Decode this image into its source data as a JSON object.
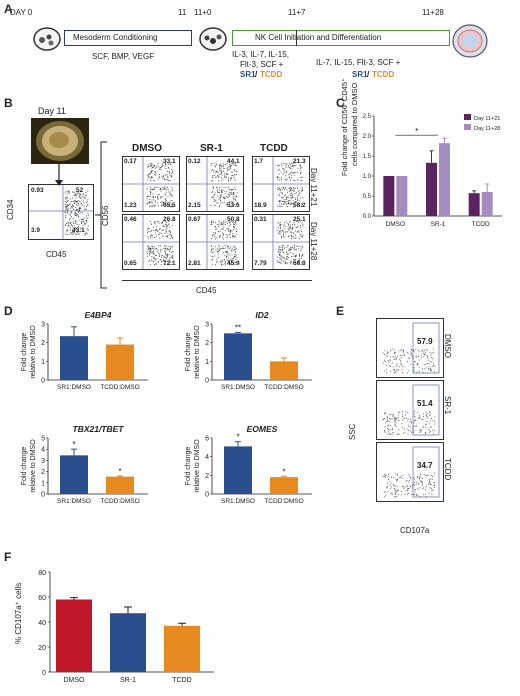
{
  "panelA": {
    "label": "A",
    "timeline": [
      "DAY 0",
      "11",
      "11+0",
      "11+7",
      "11+28"
    ],
    "box1": "Mesoderm Conditioning",
    "box2": "NK Cell Initiation and Differentiation",
    "cond1": "SCF, BMP, VEGF",
    "cond2a": "IL-3, IL-7, IL-15,",
    "cond2b": "Flt-3, SCF +",
    "cond3": "IL-7, IL-15, Flt-3, SCF +",
    "sr1": "SR1",
    "slash": "/",
    "tcdd": "TCDD"
  },
  "panelB": {
    "label": "B",
    "day": "Day 11",
    "cd34": "CD34",
    "cd45": "CD45",
    "cd56": "CD56",
    "cd45b": "CD45",
    "left_q": [
      "0.93",
      "52",
      "3.9",
      "43.1"
    ],
    "cols": [
      "DMSO",
      "SR-1",
      "TCDD"
    ],
    "rows": [
      "Day 11+21",
      "Day 11+28"
    ],
    "q21": [
      [
        "0.17",
        "33.1",
        "1.23",
        "65.5"
      ],
      [
        "0.12",
        "44.1",
        "2.15",
        "53.6"
      ],
      [
        "1.7",
        "21.3",
        "18.9",
        "58.2"
      ]
    ],
    "q28": [
      [
        "0.46",
        "26.8",
        "0.65",
        "72.1"
      ],
      [
        "0.67",
        "50.8",
        "2.81",
        "45.9"
      ],
      [
        "0.31",
        "25.1",
        "7.79",
        "66.8"
      ]
    ],
    "tick_e": "10",
    "tick_sup": [
      "5",
      "4",
      "3",
      "2",
      "1",
      "0"
    ]
  },
  "panelC": {
    "label": "C",
    "ylabel1": "Fold change of CD56⁺CD45⁺",
    "ylabel2": "cells compared to DMSO",
    "legend": [
      "Day 11+21",
      "Day 11+28"
    ],
    "sig": "*",
    "chart_data": {
      "type": "bar",
      "categories": [
        "DMSO",
        "SR-1",
        "TCDD"
      ],
      "series": [
        {
          "name": "Day 11+21",
          "values": [
            1.0,
            1.33,
            0.57
          ],
          "err": [
            0,
            0.3,
            0.06
          ],
          "color": "#5b2461"
        },
        {
          "name": "Day 11+28",
          "values": [
            1.0,
            1.82,
            0.6
          ],
          "err": [
            0,
            0.12,
            0.2
          ],
          "color": "#a58cc0"
        }
      ],
      "ylim": [
        0,
        2.5
      ],
      "yticks": [
        "0.0",
        "0.5",
        "1.0",
        "1.5",
        "2.0",
        "2.5"
      ]
    }
  },
  "panelD": {
    "label": "D",
    "ylab1": "Fold change",
    "ylab2": "relative to DMSO",
    "cats": [
      "SR1:DMSO",
      "TCDD:DMSO"
    ],
    "charts": [
      {
        "title": "E4BP4",
        "values": [
          2.35,
          1.9
        ],
        "err": [
          0.5,
          0.35
        ],
        "ymax": 3,
        "yticks": [
          "0",
          "1",
          "2",
          "3"
        ],
        "sig": [
          "",
          ""
        ]
      },
      {
        "title": "ID2",
        "values": [
          2.5,
          1.0
        ],
        "err": [
          0.05,
          0.18
        ],
        "ymax": 3,
        "yticks": [
          "0",
          "1",
          "2",
          "3"
        ],
        "sig": [
          "**",
          ""
        ]
      },
      {
        "title": "TBX21/TBET",
        "values": [
          3.45,
          1.55
        ],
        "err": [
          0.55,
          0.07
        ],
        "ymax": 5,
        "yticks": [
          "0",
          "1",
          "2",
          "3",
          "4",
          "5"
        ],
        "sig": [
          "*",
          "*"
        ]
      },
      {
        "title": "EOMES",
        "values": [
          5.1,
          1.8
        ],
        "err": [
          0.5,
          0.1
        ],
        "ymax": 6,
        "yticks": [
          "0",
          "2",
          "4",
          "6"
        ],
        "sig": [
          "*",
          "*"
        ]
      }
    ],
    "colors": [
      "#2a4f8f",
      "#e68a1f"
    ]
  },
  "panelE": {
    "label": "E",
    "ssc": "SSC",
    "cd107a": "CD107a",
    "samples": [
      "DMSO",
      "SR-1",
      "TCDD"
    ],
    "values": [
      "57.9",
      "51.4",
      "34.7"
    ],
    "yticks": [
      "250K",
      "200K",
      "150K",
      "100K",
      "50K",
      "0"
    ]
  },
  "panelF": {
    "label": "F",
    "ylabel": "% CD107a⁺ cells",
    "chart_data": {
      "type": "bar",
      "categories": [
        "DMSO",
        "SR-1",
        "TCDD"
      ],
      "values": [
        58,
        47,
        37
      ],
      "err": [
        1.5,
        5,
        2
      ],
      "colors": [
        "#c0182b",
        "#2a4f8f",
        "#e68a1f"
      ],
      "ylim": [
        0,
        80
      ],
      "yticks": [
        "0",
        "20",
        "40",
        "60",
        "80"
      ]
    }
  }
}
